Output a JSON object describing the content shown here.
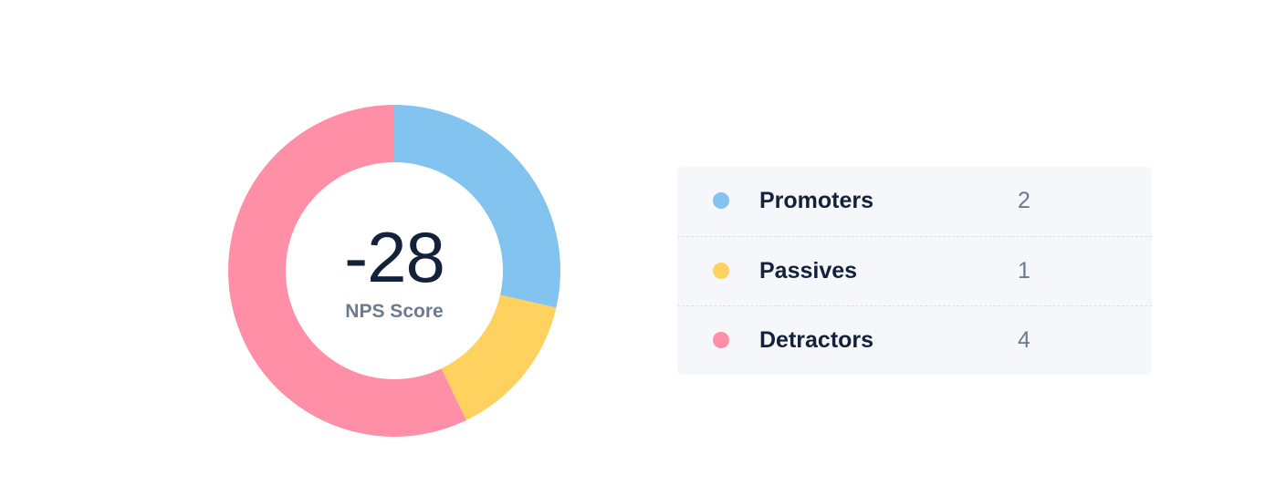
{
  "chart_data": {
    "type": "pie",
    "variant": "donut",
    "center_value": "-28",
    "center_label": "NPS Score",
    "categories": [
      "Promoters",
      "Passives",
      "Detractors"
    ],
    "values": [
      2,
      1,
      4
    ],
    "colors": [
      "#82c3ef",
      "#ffd15e",
      "#ff8fa7"
    ],
    "legend_placement": "right"
  },
  "legend": [
    {
      "label": "Promoters",
      "value": "2",
      "color": "#82c3ef"
    },
    {
      "label": "Passives",
      "value": "1",
      "color": "#ffd15e"
    },
    {
      "label": "Detractors",
      "value": "4",
      "color": "#ff8fa7"
    }
  ]
}
